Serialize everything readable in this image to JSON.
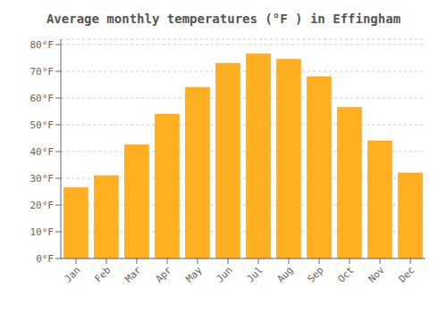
{
  "chart_data": {
    "type": "bar",
    "title": "Average monthly temperatures (°F ) in Effingham",
    "categories": [
      "Jan",
      "Feb",
      "Mar",
      "Apr",
      "May",
      "Jun",
      "Jul",
      "Aug",
      "Sep",
      "Oct",
      "Nov",
      "Dec"
    ],
    "values": [
      26.5,
      31.0,
      42.5,
      54.0,
      64.0,
      73.0,
      76.5,
      74.5,
      68.0,
      56.5,
      44.0,
      32.0
    ],
    "color": "#FFB020",
    "ylim": [
      0,
      82
    ],
    "yticks": [
      {
        "value": 0,
        "label": "0°F"
      },
      {
        "value": 10,
        "label": "10°F"
      },
      {
        "value": 20,
        "label": "20°F"
      },
      {
        "value": 30,
        "label": "30°F"
      },
      {
        "value": 40,
        "label": "40°F"
      },
      {
        "value": 50,
        "label": "50°F"
      },
      {
        "value": 60,
        "label": "60°F"
      },
      {
        "value": 70,
        "label": "70°F"
      },
      {
        "value": 80,
        "label": "80°F"
      }
    ],
    "grid": true
  }
}
